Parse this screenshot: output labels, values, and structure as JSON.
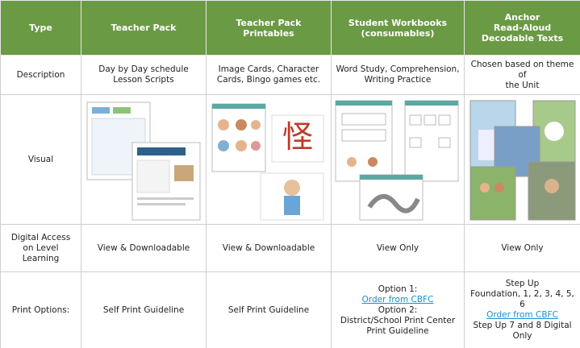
{
  "table": {
    "header": [
      [
        "Type"
      ],
      [
        "Teacher Pack"
      ],
      [
        "Teacher Pack Printables"
      ],
      [
        "Student Workbooks",
        "(consumables)"
      ],
      [
        "Anchor",
        "Read-Aloud",
        "Decodable Texts"
      ]
    ],
    "rows": [
      {
        "label": [
          "Description"
        ],
        "cells": [
          [
            "Day by Day schedule",
            "Lesson Scripts"
          ],
          [
            "Image Cards, Character",
            "Cards, Bingo games etc."
          ],
          [
            "Word Study, Comprehension,",
            "Writing Practice"
          ],
          [
            "Chosen based on theme of",
            "the Unit"
          ]
        ]
      },
      {
        "label": [
          "Visual"
        ]
      },
      {
        "label": [
          "Digital Access",
          "on Level",
          "Learning"
        ],
        "cells": [
          [
            "View & Downloadable"
          ],
          [
            "View & Downloadable"
          ],
          [
            "View Only"
          ],
          [
            "View Only"
          ]
        ]
      },
      {
        "label": [
          "Print Options:"
        ],
        "cells": [
          [
            "Self Print Guideline"
          ],
          [
            "Self Print Guideline"
          ],
          [
            "Option 1:",
            "Option 2:",
            "District/School Print Center",
            "Print Guideline"
          ],
          [
            "Step Up",
            "Foundation, 1, 2, 3, 4, 5, 6",
            "Step Up 7 and 8 Digital",
            "Only"
          ]
        ],
        "links": [
          "Order from CBFC",
          "Order from CBFC"
        ]
      }
    ]
  }
}
